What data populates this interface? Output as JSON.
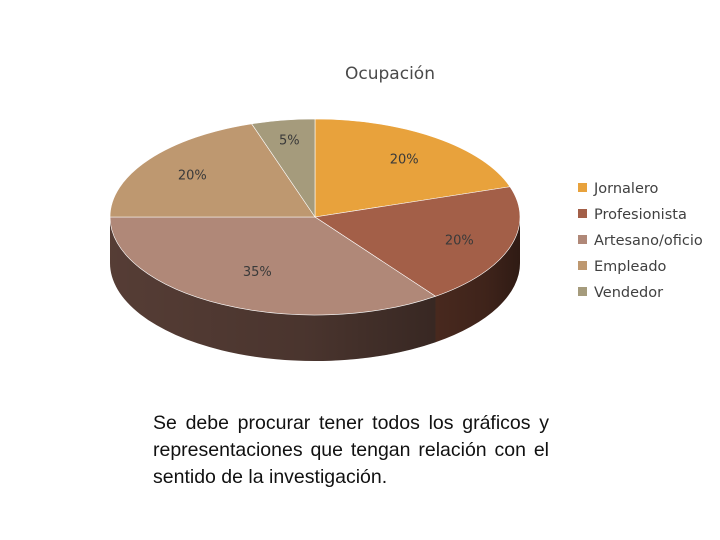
{
  "chart_data": {
    "type": "pie",
    "title": "Ocupación",
    "categories": [
      "Jornalero",
      "Profesionista",
      "Artesano/oficio",
      "Empleado",
      "Vendedor"
    ],
    "values": [
      20,
      20,
      35,
      20,
      5
    ],
    "labels": [
      "20%",
      "20%",
      "35%",
      "20%",
      "5%"
    ],
    "colors": [
      "#E8A23C",
      "#A35F48",
      "#B08878",
      "#BE9870",
      "#A59B7C"
    ],
    "side_colors": [
      "#A8722A",
      "#4C2B20",
      "#5A4038",
      "#6E5540",
      "#615A48"
    ],
    "legend_position": "right",
    "three_d": true
  },
  "caption": "Se debe procurar tener todos los gráficos y representaciones que tengan relación con el sentido de la investigación."
}
